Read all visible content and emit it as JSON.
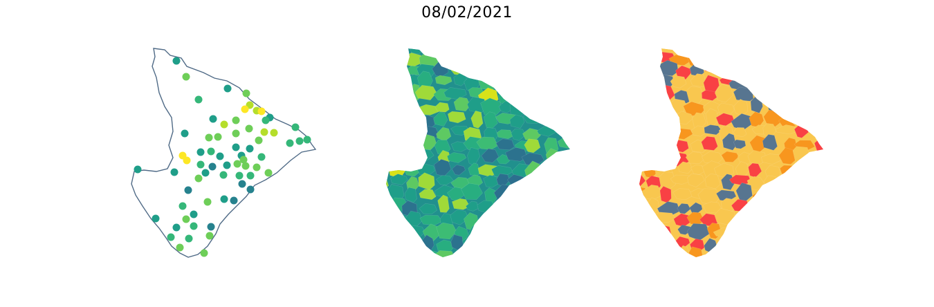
{
  "figure": {
    "title": "08/02/2021"
  },
  "panels": [
    {
      "id": "points",
      "kind": "point-map",
      "outline_color": "#4f6a86"
    },
    {
      "id": "choropleth-continuous",
      "kind": "choropleth",
      "colormap": "viridis"
    },
    {
      "id": "choropleth-categorical",
      "kind": "choropleth",
      "category_colors": [
        "#f9c74f",
        "#f8961e",
        "#f94144",
        "#577590"
      ]
    }
  ]
}
